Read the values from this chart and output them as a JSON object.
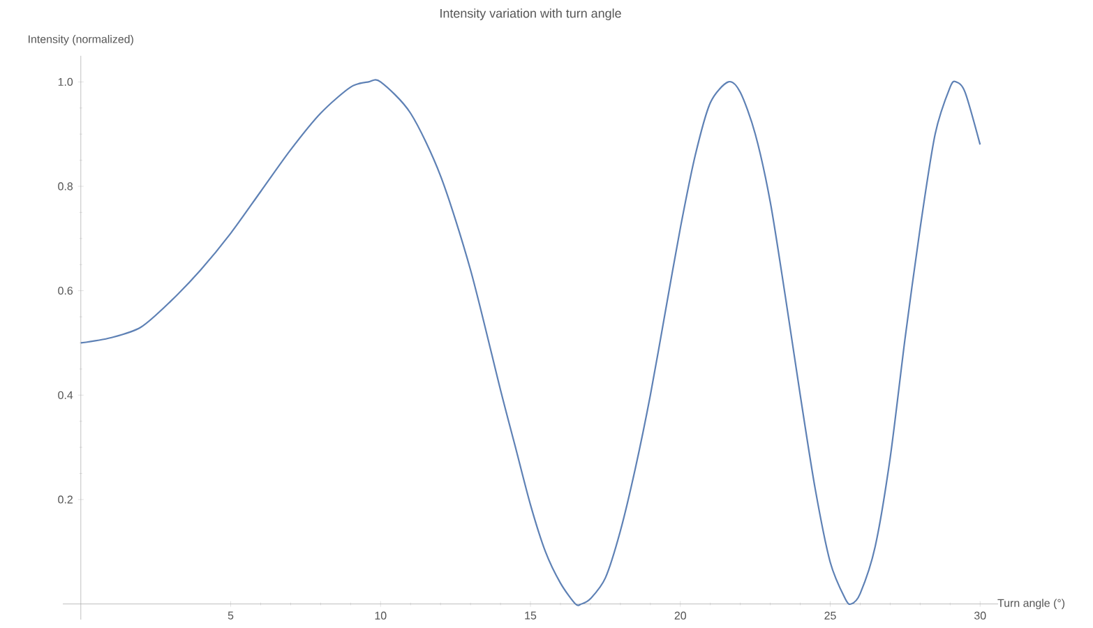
{
  "chart_data": {
    "type": "line",
    "title": "Intensity variation with turn angle",
    "xlabel": "Turn angle (°)",
    "ylabel": "Intensity (normalized)",
    "x": [
      0,
      1,
      2,
      3,
      4,
      5,
      6,
      7,
      8,
      9,
      9.6,
      10,
      11,
      12,
      13,
      14,
      14.5,
      15,
      15.5,
      16,
      16.5,
      16.7,
      17,
      17.5,
      18,
      18.5,
      19,
      19.5,
      20,
      20.5,
      21,
      21.6,
      22,
      22.5,
      23,
      23.5,
      24,
      24.5,
      25,
      25.5,
      25.7,
      26,
      26.5,
      27,
      27.5,
      28,
      28.5,
      29,
      29.2,
      29.5,
      30
    ],
    "series": [
      {
        "color": "#5e81b5",
        "values": [
          0.5,
          0.51,
          0.53,
          0.58,
          0.64,
          0.71,
          0.79,
          0.87,
          0.94,
          0.99,
          1.0,
          1.0,
          0.94,
          0.82,
          0.64,
          0.41,
          0.3,
          0.19,
          0.1,
          0.04,
          0.0,
          0.0,
          0.01,
          0.05,
          0.14,
          0.26,
          0.4,
          0.56,
          0.72,
          0.86,
          0.96,
          1.0,
          0.98,
          0.9,
          0.77,
          0.59,
          0.4,
          0.22,
          0.08,
          0.01,
          0.0,
          0.02,
          0.11,
          0.28,
          0.51,
          0.72,
          0.9,
          0.99,
          1.0,
          0.98,
          0.88
        ]
      }
    ],
    "xlim": [
      -0.6,
      30.6
    ],
    "ylim": [
      -0.03,
      1.05
    ],
    "xticks": [
      5,
      10,
      15,
      20,
      25,
      30
    ],
    "yticks": [
      0.2,
      0.4,
      0.6,
      0.8,
      {
        "value": 1.0,
        "label": "1.0"
      }
    ]
  }
}
